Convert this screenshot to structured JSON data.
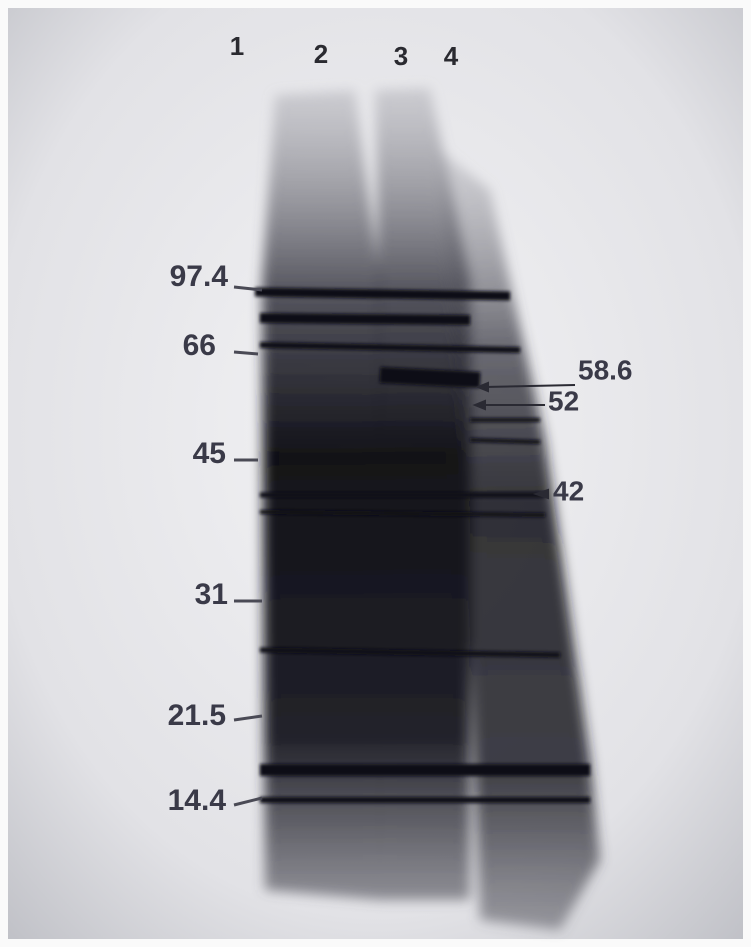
{
  "lanes": [
    "1",
    "2",
    "3",
    "4"
  ],
  "markers": [
    "97.4",
    "66",
    "45",
    "31",
    "21.5",
    "14.4"
  ],
  "annotations": [
    "58.6",
    "52",
    "42"
  ]
}
